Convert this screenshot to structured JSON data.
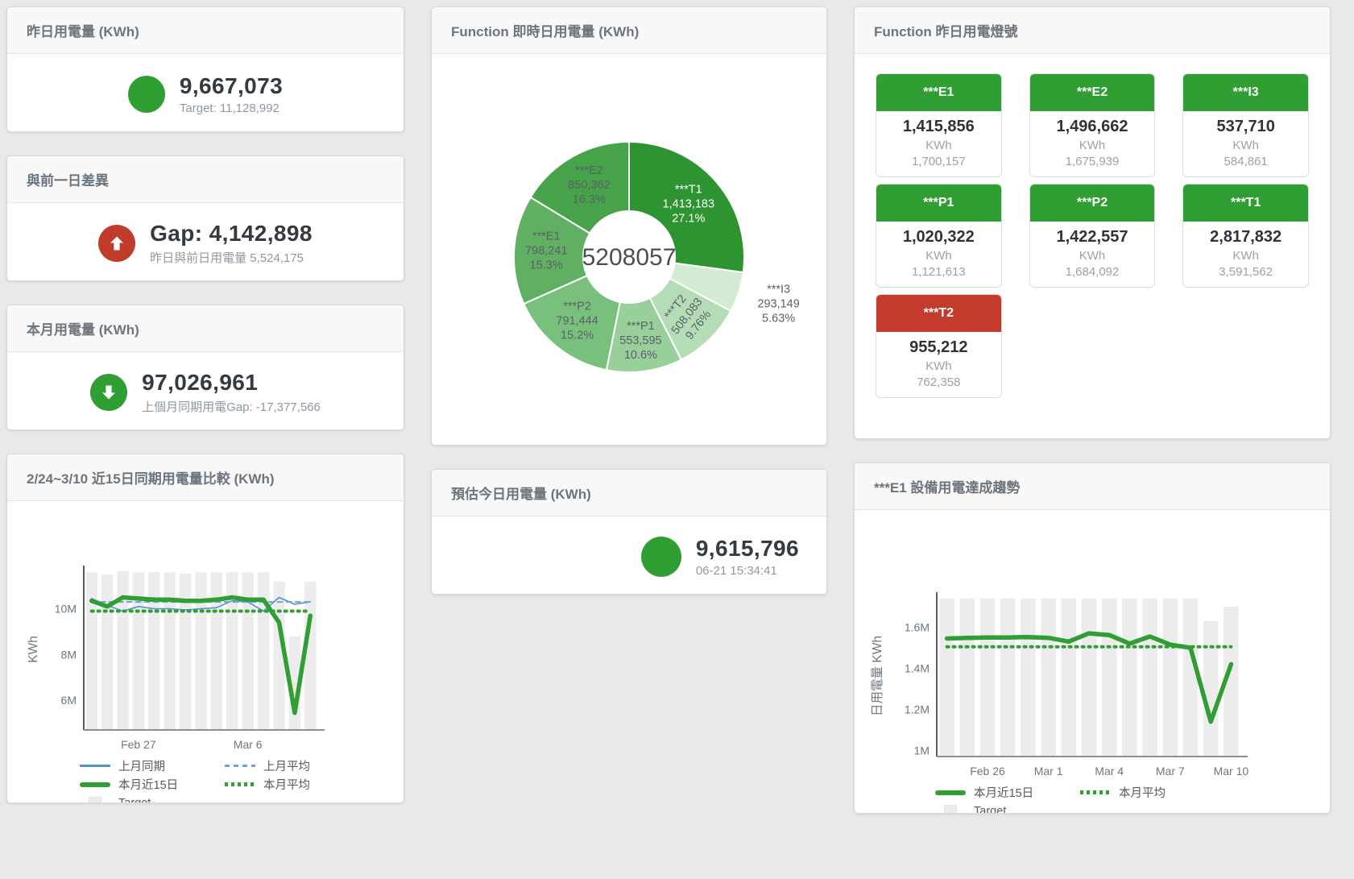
{
  "page_bg": "#e9e9e9",
  "kpi_cards": {
    "yesterday": {
      "title": "昨日用電量 (KWh)",
      "value": "9,667,073",
      "subtitle": "Target: 11,128,992",
      "indicator": "circle",
      "color": "#2f9e33"
    },
    "gap": {
      "title": "與前一日差異",
      "value": "Gap: 4,142,898",
      "subtitle": "昨日與前日用電量 5,524,175",
      "indicator": "arrow-up",
      "color": "#c13b2b"
    },
    "month": {
      "title": "本月用電量 (KWh)",
      "value": "97,026,961",
      "subtitle": "上個月同期用電Gap: -17,377,566",
      "indicator": "arrow-down",
      "color": "#2f9e33"
    },
    "estimate": {
      "title": "預估今日用電量 (KWh)",
      "value": "9,615,796",
      "subtitle": "06-21 15:34:41",
      "indicator": "circle",
      "color": "#2f9e33"
    }
  },
  "lamp": {
    "title": "Function 昨日用電燈號",
    "unit": "KWh",
    "tiles": [
      {
        "name": "***E1",
        "value": "1,415,856",
        "target": "1,700,157",
        "color": "#2f9e33"
      },
      {
        "name": "***E2",
        "value": "1,496,662",
        "target": "1,675,939",
        "color": "#2f9e33"
      },
      {
        "name": "***I3",
        "value": "537,710",
        "target": "584,861",
        "color": "#2f9e33"
      },
      {
        "name": "***P1",
        "value": "1,020,322",
        "target": "1,121,613",
        "color": "#2f9e33"
      },
      {
        "name": "***P2",
        "value": "1,422,557",
        "target": "1,684,092",
        "color": "#2f9e33"
      },
      {
        "name": "***T1",
        "value": "2,817,832",
        "target": "3,591,562",
        "color": "#2f9e33"
      },
      {
        "name": "***T2",
        "value": "955,212",
        "target": "762,358",
        "color": "#c23b2c"
      }
    ]
  },
  "chart_data": [
    {
      "id": "realtime_donut",
      "type": "pie",
      "title": "Function 即時日用電量 (KWh)",
      "center_total": "5208057",
      "slices": [
        {
          "name": "***T1",
          "value": 1413183,
          "label_value": "1,413,183",
          "pct": "27.1%",
          "color": "#2e9431",
          "label_color": "#ffffff",
          "label_r": 98
        },
        {
          "name": "***I3",
          "value": 293149,
          "label_value": "293,149",
          "pct": "5.63%",
          "color": "#d2ebd2",
          "label_color": "#5a6168",
          "outside": true
        },
        {
          "name": "***T2",
          "value": 508083,
          "label_value": "508,083",
          "pct": "9.76%",
          "color": "#b4dcb5",
          "label_color": "#5a6168",
          "label_rotate": -52,
          "label_r": 104
        },
        {
          "name": "***P1",
          "value": 553595,
          "label_value": "553,595",
          "pct": "10.6%",
          "color": "#99cf9b",
          "label_color": "#5a6168",
          "label_r": 106
        },
        {
          "name": "***P2",
          "value": 791444,
          "label_value": "791,444",
          "pct": "15.2%",
          "color": "#7ac07d",
          "label_color": "#5a6168",
          "label_r": 103
        },
        {
          "name": "***E1",
          "value": 798241,
          "label_value": "798,241",
          "pct": "15.3%",
          "color": "#5fb062",
          "label_color": "#5a6168",
          "label_r": 103
        },
        {
          "name": "***E2",
          "value": 850362,
          "label_value": "850,362",
          "pct": "16.3%",
          "color": "#46a349",
          "label_color": "#5a6168",
          "label_r": 101
        }
      ]
    },
    {
      "id": "compare_15day",
      "type": "line",
      "title": "2/24~3/10 近15日同期用電量比較 (KWh)",
      "ylabel": "KWh",
      "ylim": [
        4.7,
        11.75
      ],
      "yticks": [
        {
          "v": 6,
          "label": "6M"
        },
        {
          "v": 8,
          "label": "8M"
        },
        {
          "v": 10,
          "label": "10M"
        }
      ],
      "x_count": 15,
      "xticks": [
        {
          "i": 3,
          "label": "Feb 27"
        },
        {
          "i": 10,
          "label": "Mar 6"
        }
      ],
      "target_bars": {
        "name": "Target",
        "color": "#ececec",
        "values": [
          11.6,
          11.5,
          11.65,
          11.6,
          11.6,
          11.6,
          11.55,
          11.6,
          11.6,
          11.6,
          11.6,
          11.6,
          11.2,
          8.8,
          11.2
        ]
      },
      "series": [
        {
          "name": "上月同期",
          "color": "#5292cc",
          "width": 1.6,
          "values": [
            10.45,
            10.15,
            9.9,
            10.1,
            10.0,
            10.0,
            9.95,
            10.0,
            10.05,
            10.35,
            10.3,
            9.9,
            10.5,
            10.2,
            10.3
          ]
        },
        {
          "name": "上月平均",
          "color": "#68a4d8",
          "width": 2,
          "dash": "6 5",
          "const": 10.3
        },
        {
          "name": "本月近15日",
          "color": "#2f9e33",
          "width": 5.5,
          "values": [
            10.35,
            10.1,
            10.5,
            10.45,
            10.4,
            10.4,
            10.35,
            10.35,
            10.4,
            10.5,
            10.4,
            10.4,
            9.4,
            5.45,
            9.7
          ]
        },
        {
          "name": "本月平均",
          "color": "#2f9e33",
          "width": 4,
          "dash": "2 6",
          "const": 9.9
        }
      ],
      "legend": [
        {
          "label": "上月同期",
          "swatch": "line",
          "color": "#5292cc"
        },
        {
          "label": "上月平均",
          "swatch": "dash",
          "color": "#68a4d8"
        },
        {
          "label": "本月近15日",
          "swatch": "thick",
          "color": "#2f9e33"
        },
        {
          "label": "本月平均",
          "swatch": "dots",
          "color": "#2f9e33"
        },
        {
          "label": "Target",
          "swatch": "square",
          "color": "#ececec"
        }
      ]
    },
    {
      "id": "e1_trend",
      "type": "line",
      "title": "***E1 設備用電達成趨勢",
      "ylabel": "日用電量 KWh",
      "ylim": [
        0.97,
        1.755
      ],
      "yticks": [
        {
          "v": 1,
          "label": "1M"
        },
        {
          "v": 1.2,
          "label": "1.2M"
        },
        {
          "v": 1.4,
          "label": "1.4M"
        },
        {
          "v": 1.6,
          "label": "1.6M"
        }
      ],
      "x_count": 15,
      "xticks": [
        {
          "i": 2,
          "label": "Feb 26"
        },
        {
          "i": 5,
          "label": "Mar 1"
        },
        {
          "i": 8,
          "label": "Mar 4"
        },
        {
          "i": 11,
          "label": "Mar 7"
        },
        {
          "i": 14,
          "label": "Mar 10"
        }
      ],
      "target_bars": {
        "name": "Target",
        "color": "#ececec",
        "values": [
          1.74,
          1.74,
          1.74,
          1.74,
          1.74,
          1.74,
          1.74,
          1.74,
          1.74,
          1.74,
          1.74,
          1.74,
          1.74,
          1.63,
          1.7
        ]
      },
      "series": [
        {
          "name": "本月近15日",
          "color": "#2f9e33",
          "width": 5.5,
          "values": [
            1.545,
            1.548,
            1.55,
            1.55,
            1.552,
            1.548,
            1.53,
            1.57,
            1.562,
            1.52,
            1.555,
            1.515,
            1.5,
            1.14,
            1.42
          ]
        },
        {
          "name": "本月平均",
          "color": "#2f9e33",
          "width": 4,
          "dash": "2 6",
          "const": 1.505
        }
      ],
      "legend": [
        {
          "label": "本月近15日",
          "swatch": "thick",
          "color": "#2f9e33"
        },
        {
          "label": "本月平均",
          "swatch": "dots",
          "color": "#2f9e33"
        },
        {
          "label": "Target",
          "swatch": "square",
          "color": "#ececec"
        }
      ]
    }
  ]
}
